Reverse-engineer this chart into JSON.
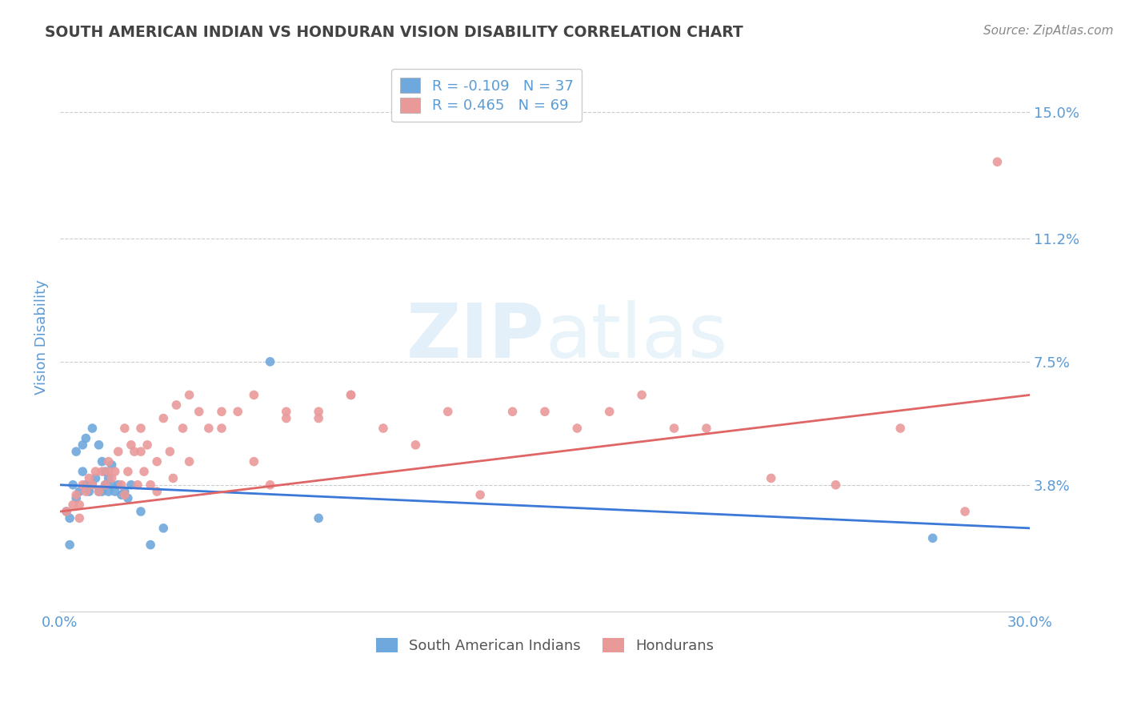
{
  "title": "SOUTH AMERICAN INDIAN VS HONDURAN VISION DISABILITY CORRELATION CHART",
  "source": "Source: ZipAtlas.com",
  "ylabel": "Vision Disability",
  "xlim": [
    0.0,
    0.3
  ],
  "ylim": [
    0.0,
    0.165
  ],
  "yticks": [
    0.038,
    0.075,
    0.112,
    0.15
  ],
  "ytick_labels": [
    "3.8%",
    "7.5%",
    "11.2%",
    "15.0%"
  ],
  "xticks": [
    0.0,
    0.3
  ],
  "xtick_labels": [
    "0.0%",
    "30.0%"
  ],
  "blue_R": "-0.109",
  "blue_N": "37",
  "pink_R": "0.465",
  "pink_N": "69",
  "blue_color": "#6fa8dc",
  "pink_color": "#ea9999",
  "blue_line_color": "#3c78d8",
  "pink_line_color": "#e06666",
  "label_blue": "South American Indians",
  "label_pink": "Hondurans",
  "background_color": "#ffffff",
  "title_color": "#434343",
  "axis_label_color": "#5b9bd5",
  "tick_label_color": "#5b9bd5",
  "legend_R_color": "#5b9bd5",
  "source_color": "#888888",
  "watermark_color": "#d0e8f5",
  "blue_scatter_x": [
    0.002,
    0.003,
    0.004,
    0.005,
    0.005,
    0.006,
    0.007,
    0.007,
    0.008,
    0.008,
    0.009,
    0.01,
    0.01,
    0.011,
    0.012,
    0.012,
    0.013,
    0.013,
    0.014,
    0.014,
    0.015,
    0.015,
    0.016,
    0.016,
    0.017,
    0.018,
    0.019,
    0.02,
    0.021,
    0.022,
    0.025,
    0.028,
    0.032,
    0.065,
    0.08,
    0.27,
    0.003
  ],
  "blue_scatter_y": [
    0.03,
    0.028,
    0.038,
    0.034,
    0.048,
    0.036,
    0.042,
    0.05,
    0.038,
    0.052,
    0.036,
    0.055,
    0.038,
    0.04,
    0.036,
    0.05,
    0.036,
    0.045,
    0.038,
    0.042,
    0.036,
    0.04,
    0.038,
    0.044,
    0.036,
    0.038,
    0.035,
    0.036,
    0.034,
    0.038,
    0.03,
    0.02,
    0.025,
    0.075,
    0.028,
    0.022,
    0.02
  ],
  "pink_scatter_x": [
    0.002,
    0.004,
    0.005,
    0.006,
    0.007,
    0.008,
    0.009,
    0.01,
    0.011,
    0.012,
    0.013,
    0.014,
    0.015,
    0.016,
    0.017,
    0.018,
    0.019,
    0.02,
    0.021,
    0.022,
    0.023,
    0.024,
    0.025,
    0.026,
    0.027,
    0.028,
    0.03,
    0.032,
    0.034,
    0.036,
    0.038,
    0.04,
    0.043,
    0.046,
    0.05,
    0.055,
    0.06,
    0.065,
    0.07,
    0.08,
    0.09,
    0.1,
    0.12,
    0.14,
    0.16,
    0.18,
    0.2,
    0.22,
    0.24,
    0.26,
    0.28,
    0.006,
    0.015,
    0.02,
    0.025,
    0.03,
    0.035,
    0.04,
    0.05,
    0.06,
    0.07,
    0.08,
    0.09,
    0.11,
    0.13,
    0.15,
    0.17,
    0.19,
    0.29
  ],
  "pink_scatter_y": [
    0.03,
    0.032,
    0.035,
    0.028,
    0.038,
    0.036,
    0.04,
    0.038,
    0.042,
    0.036,
    0.042,
    0.038,
    0.045,
    0.04,
    0.042,
    0.048,
    0.038,
    0.055,
    0.042,
    0.05,
    0.048,
    0.038,
    0.055,
    0.042,
    0.05,
    0.038,
    0.045,
    0.058,
    0.048,
    0.062,
    0.055,
    0.045,
    0.06,
    0.055,
    0.06,
    0.06,
    0.065,
    0.038,
    0.058,
    0.06,
    0.065,
    0.055,
    0.06,
    0.06,
    0.055,
    0.065,
    0.055,
    0.04,
    0.038,
    0.055,
    0.03,
    0.032,
    0.042,
    0.035,
    0.048,
    0.036,
    0.04,
    0.065,
    0.055,
    0.045,
    0.06,
    0.058,
    0.065,
    0.05,
    0.035,
    0.06,
    0.06,
    0.055,
    0.135
  ],
  "blue_trend_x": [
    0.0,
    0.3
  ],
  "blue_trend_y_start": 0.038,
  "blue_trend_y_end": 0.025,
  "pink_trend_y_start": 0.03,
  "pink_trend_y_end": 0.065
}
